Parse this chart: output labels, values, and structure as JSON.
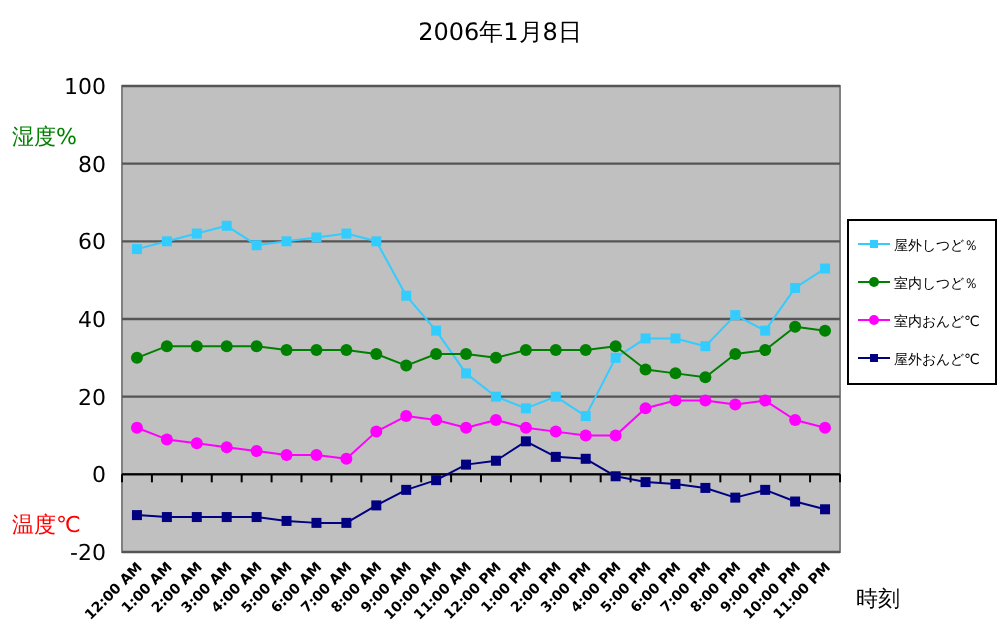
{
  "chart_data": {
    "type": "line",
    "title": "2006年1月8日",
    "xlabel": "時刻",
    "ylabel": "湿度%",
    "annotations": [
      "温度℃"
    ],
    "categories": [
      "12:00 AM",
      "1:00 AM",
      "2:00 AM",
      "3:00 AM",
      "4:00 AM",
      "5:00 AM",
      "6:00 AM",
      "7:00 AM",
      "8:00 AM",
      "9:00 AM",
      "10:00 AM",
      "11:00 AM",
      "12:00 PM",
      "1:00 PM",
      "2:00 PM",
      "3:00 PM",
      "4:00 PM",
      "5:00 PM",
      "6:00 PM",
      "7:00 PM",
      "8:00 PM",
      "9:00 PM",
      "10:00 PM",
      "11:00 PM"
    ],
    "ylim": [
      -20,
      100
    ],
    "yticks": [
      -20,
      0,
      20,
      40,
      60,
      80,
      100
    ],
    "grid": "y",
    "legend": "right",
    "series": [
      {
        "name": "屋外しつど％",
        "color": "#33ccff",
        "marker": "square",
        "values": [
          58,
          60,
          62,
          64,
          59,
          60,
          61,
          62,
          60,
          46,
          37,
          26,
          20,
          17,
          20,
          15,
          30,
          35,
          35,
          33,
          41,
          37,
          48,
          53
        ]
      },
      {
        "name": "室内しつど％",
        "color": "#008000",
        "marker": "circle",
        "values": [
          30,
          33,
          33,
          33,
          33,
          32,
          32,
          32,
          31,
          28,
          31,
          31,
          30,
          32,
          32,
          32,
          33,
          27,
          26,
          25,
          31,
          32,
          38,
          37
        ]
      },
      {
        "name": "室内おんど℃",
        "color": "#ff00ff",
        "marker": "circle",
        "values": [
          12,
          9,
          8,
          7,
          6,
          5,
          5,
          4,
          11,
          15,
          14,
          12,
          14,
          12,
          11,
          10,
          10,
          17,
          19,
          19,
          18,
          19,
          14,
          12
        ]
      },
      {
        "name": "屋外おんど℃",
        "color": "#000080",
        "marker": "square",
        "values": [
          -10.5,
          -11,
          -11,
          -11,
          -11,
          -12,
          -12.5,
          -12.5,
          -8,
          -4,
          -1.5,
          2.5,
          3.5,
          8.5,
          4.5,
          4,
          -0.5,
          -2,
          -2.5,
          -3.5,
          -6,
          -4,
          -7,
          -9
        ]
      }
    ]
  }
}
